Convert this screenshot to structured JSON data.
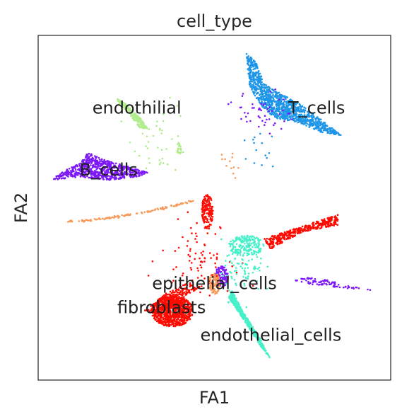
{
  "chart_data": {
    "type": "scatter",
    "title": "cell_type",
    "xlabel": "FA1",
    "ylabel": "FA2",
    "xlim": [
      0,
      100
    ],
    "ylim": [
      0,
      100
    ],
    "grid": false,
    "legend": "on data",
    "series": [
      {
        "name": "endothilial",
        "color": "#b1ec8c",
        "label_at": [
          28,
          79
        ],
        "shapes": [
          {
            "kind": "poly",
            "pts": [
              [
                22,
                82
              ],
              [
                25,
                80
              ],
              [
                29,
                76
              ],
              [
                31,
                73
              ],
              [
                29,
                73
              ],
              [
                26,
                77
              ],
              [
                23,
                80
              ]
            ],
            "n": 180
          },
          {
            "kind": "ellipse",
            "c": [
              40,
              67
            ],
            "r": [
              0.6,
              2.2
            ],
            "n": 25
          },
          {
            "kind": "scatter",
            "c": [
              35,
              70
            ],
            "r": [
              8,
              10
            ],
            "n": 40
          }
        ]
      },
      {
        "name": "T_cells",
        "color": "#1f96e8",
        "label_at": [
          79,
          79
        ],
        "shapes": [
          {
            "kind": "poly",
            "pts": [
              [
                59,
                95
              ],
              [
                62,
                92
              ],
              [
                64,
                86
              ],
              [
                69,
                83
              ],
              [
                76,
                79
              ],
              [
                86,
                71
              ],
              [
                80,
                72
              ],
              [
                73,
                75
              ],
              [
                67,
                76
              ],
              [
                63,
                80
              ],
              [
                60,
                85
              ]
            ],
            "n": 1100
          },
          {
            "kind": "scatter",
            "c": [
              64,
              68
            ],
            "r": [
              4,
              6
            ],
            "n": 15
          }
        ]
      },
      {
        "name": "B_cells",
        "color": "#7d18f7",
        "label_at": [
          20,
          61
        ],
        "shapes": [
          {
            "kind": "poly",
            "pts": [
              [
                14,
                66
              ],
              [
                22,
                63
              ],
              [
                32,
                60
              ],
              [
                28,
                59
              ],
              [
                20,
                58
              ],
              [
                12,
                59
              ],
              [
                4,
                58
              ],
              [
                6,
                60
              ],
              [
                12,
                63
              ]
            ],
            "n": 700
          },
          {
            "kind": "poly",
            "pts": [
              [
                72,
                29
              ],
              [
                76,
                28
              ],
              [
                84,
                27
              ],
              [
                95,
                26
              ],
              [
                86,
                28
              ],
              [
                78,
                30
              ]
            ],
            "n": 90
          },
          {
            "kind": "ellipse",
            "c": [
              52,
              30
            ],
            "r": [
              2,
              3
            ],
            "n": 120
          },
          {
            "kind": "scatter",
            "c": [
              64,
              78
            ],
            "r": [
              8,
              6
            ],
            "n": 50
          }
        ]
      },
      {
        "name": "epithelial_cells",
        "color": "#f79b5c",
        "label_at": [
          50,
          28
        ],
        "shapes": [
          {
            "kind": "curve",
            "from": [
              8,
              46
            ],
            "to": [
              44,
              52
            ],
            "width": 0.5,
            "n": 130
          },
          {
            "kind": "ellipse",
            "c": [
              50,
              28
            ],
            "r": [
              1.6,
              3.2
            ],
            "n": 120
          },
          {
            "kind": "scatter",
            "c": [
              54,
              63
            ],
            "r": [
              4,
              4
            ],
            "n": 12
          }
        ]
      },
      {
        "name": "fibroblasts",
        "color": "#ff0a00",
        "label_at": [
          35,
          21
        ],
        "shapes": [
          {
            "kind": "ellipse",
            "c": [
              38,
              20
            ],
            "r": [
              6,
              4.5
            ],
            "n": 900
          },
          {
            "kind": "poly",
            "pts": [
              [
                46,
                27
              ],
              [
                40,
                23
              ],
              [
                34,
                19
              ],
              [
                30,
                20
              ],
              [
                36,
                25
              ],
              [
                42,
                28
              ]
            ],
            "n": 220
          },
          {
            "kind": "ellipse",
            "c": [
              48,
              49
            ],
            "r": [
              1.6,
              5
            ],
            "n": 150
          },
          {
            "kind": "poly",
            "pts": [
              [
                64,
                41
              ],
              [
                76,
                45
              ],
              [
                85,
                48
              ],
              [
                85,
                45
              ],
              [
                75,
                43
              ],
              [
                66,
                38
              ]
            ],
            "n": 380
          },
          {
            "kind": "scatter",
            "c": [
              45,
              36
            ],
            "r": [
              10,
              10
            ],
            "n": 90
          }
        ]
      },
      {
        "name": "endothelial_cells",
        "color": "#46f0c8",
        "label_at": [
          66,
          13
        ],
        "shapes": [
          {
            "kind": "poly",
            "pts": [
              [
                54,
                24
              ],
              [
                58,
                18
              ],
              [
                63,
                10
              ],
              [
                66,
                6
              ],
              [
                63,
                12
              ],
              [
                58,
                20
              ],
              [
                55,
                26
              ]
            ],
            "n": 420
          },
          {
            "kind": "ellipse",
            "c": [
              59,
              39
            ],
            "r": [
              5,
              3
            ],
            "n": 180
          },
          {
            "kind": "scatter",
            "c": [
              58,
              32
            ],
            "r": [
              6,
              8
            ],
            "n": 90
          }
        ]
      }
    ]
  }
}
